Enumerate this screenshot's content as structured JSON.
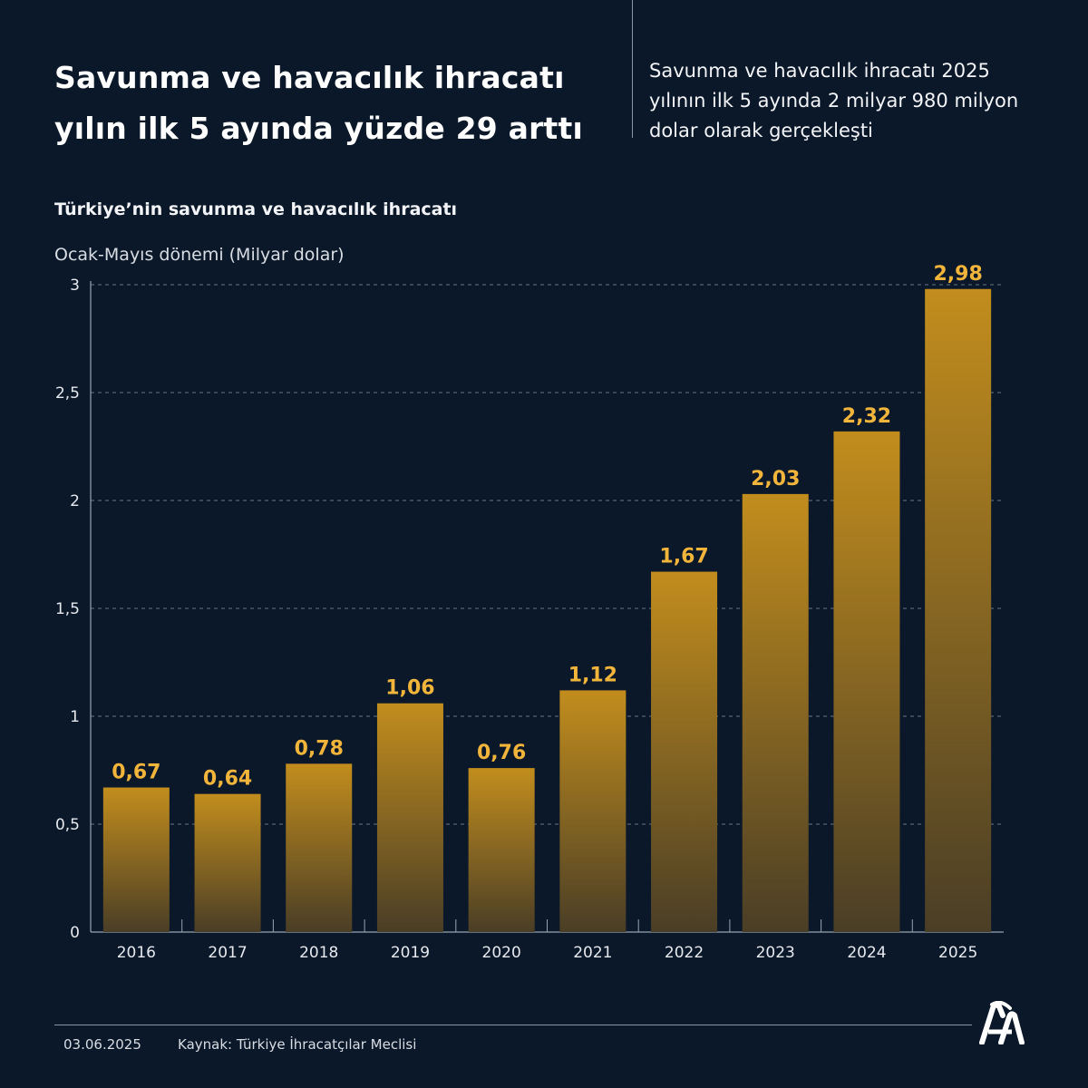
{
  "header": {
    "title_line1": "Savunma ve havacılık ihracatı",
    "title_line2": "yılın ilk 5 ayında yüzde 29 arttı",
    "subtitle_line1": "Savunma ve havacılık ihracatı 2025",
    "subtitle_line2": "yılının ilk 5 ayında 2 milyar 980 milyon",
    "subtitle_line3": "dolar olarak gerçekleşti"
  },
  "footer": {
    "date": "03.06.2025",
    "source": "Kaynak: Türkiye İhracatçılar Meclisi",
    "logo_icon": "aa-logo-icon"
  },
  "colors": {
    "background": "#0b1829",
    "bar_top": "#c28d1d",
    "bar_bottom": "#4a3e26",
    "value_label": "#f2b53b",
    "grid": "#6b7585",
    "text": "#ffffff"
  },
  "chart_data": {
    "type": "bar",
    "title": "Türkiye’nin savunma ve havacılık ihracatı",
    "ylabel": "Ocak-Mayıs dönemi (Milyar dolar)",
    "xlabel": "",
    "categories": [
      "2016",
      "2017",
      "2018",
      "2019",
      "2020",
      "2021",
      "2022",
      "2023",
      "2024",
      "2025"
    ],
    "values": [
      0.67,
      0.64,
      0.78,
      1.06,
      0.76,
      1.12,
      1.67,
      2.03,
      2.32,
      2.98
    ],
    "value_labels": [
      "0,67",
      "0,64",
      "0,78",
      "1,06",
      "0,76",
      "1,12",
      "1,67",
      "2,03",
      "2,32",
      "2,98"
    ],
    "ylim": [
      0,
      3
    ],
    "yticks": [
      0,
      0.5,
      1,
      1.5,
      2,
      2.5,
      3
    ],
    "ytick_labels": [
      "0",
      "0,5",
      "1",
      "1,5",
      "2",
      "2,5",
      "3"
    ],
    "grid": true,
    "grid_style": "dashed"
  }
}
